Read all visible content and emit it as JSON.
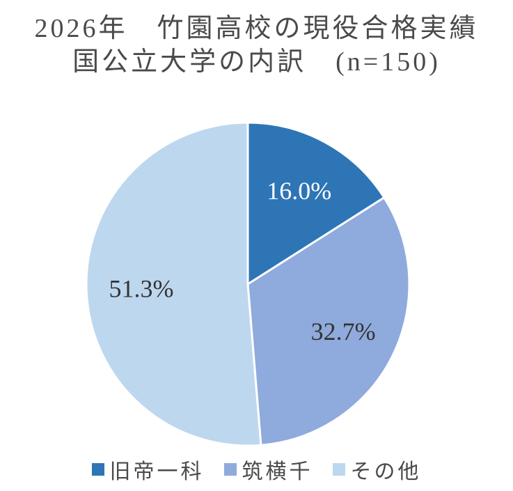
{
  "chart_data": {
    "type": "pie",
    "title_lines": [
      "2026年　竹園高校の現役合格実績",
      "国公立大学の内訳　(n=150)"
    ],
    "categories": [
      "旧帝一科",
      "筑横千",
      "その他"
    ],
    "values": [
      16.0,
      32.7,
      51.3
    ],
    "labels": [
      "16.0%",
      "32.7%",
      "51.3%"
    ],
    "colors": [
      "#2e75b6",
      "#8faadc",
      "#bdd7ee"
    ],
    "label_colors": [
      "#ffffff",
      "#333333",
      "#333333"
    ],
    "legend_position": "bottom"
  }
}
